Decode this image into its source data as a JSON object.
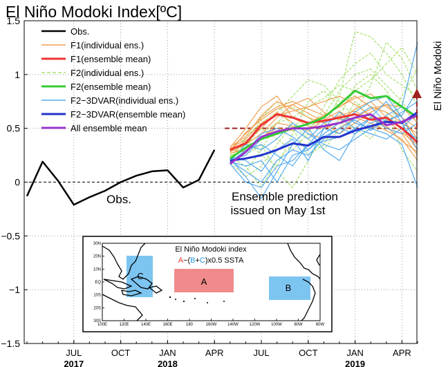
{
  "chart_data": {
    "type": "line",
    "title": "El Niño Modoki Index[ºC]",
    "ylim": [
      -1.5,
      1.5
    ],
    "yticks": [
      1.5,
      1,
      0.5,
      0,
      -0.5,
      -1,
      -1.5
    ],
    "ytick_labels": [
      "1.5",
      "1",
      "0.5",
      "0",
      "−0.5",
      "−1",
      "−1.5"
    ],
    "x_months": [
      "2017-04",
      "2017-05",
      "2017-06",
      "2017-07",
      "2017-08",
      "2017-09",
      "2017-10",
      "2017-11",
      "2017-12",
      "2018-01",
      "2018-02",
      "2018-03",
      "2018-04",
      "2018-05",
      "2018-06",
      "2018-07",
      "2018-08",
      "2018-09",
      "2018-10",
      "2018-11",
      "2018-12",
      "2019-01",
      "2019-02",
      "2019-03",
      "2019-04",
      "2019-05"
    ],
    "xticks": [
      {
        "month": "2017-07",
        "label": "JUL",
        "year": "2017"
      },
      {
        "month": "2017-10",
        "label": "OCT",
        "year": ""
      },
      {
        "month": "2018-01",
        "label": "JAN",
        "year": "2018"
      },
      {
        "month": "2018-04",
        "label": "APR",
        "year": ""
      },
      {
        "month": "2018-07",
        "label": "JUL",
        "year": ""
      },
      {
        "month": "2018-10",
        "label": "OCT",
        "year": ""
      },
      {
        "month": "2019-01",
        "label": "JAN",
        "year": "2019"
      },
      {
        "month": "2019-04",
        "label": "APR",
        "year": ""
      }
    ],
    "threshold": 0.5,
    "grid": true,
    "legend_position": "top-left",
    "legend": [
      {
        "label": "Obs.",
        "color": "#000000",
        "width": 2.5,
        "dash": ""
      },
      {
        "label": "F1(individual ens.)",
        "color": "#f0a050",
        "width": 1.5,
        "dash": ""
      },
      {
        "label": "F1(ensemble mean)",
        "color": "#ee3333",
        "width": 3,
        "dash": ""
      },
      {
        "label": "F2(individual ens.)",
        "color": "#a8e070",
        "width": 1.5,
        "dash": "5,3"
      },
      {
        "label": "F2(ensemble mean)",
        "color": "#33cc33",
        "width": 3,
        "dash": ""
      },
      {
        "label": "F2−3DVAR(individual ens.)",
        "color": "#55aaee",
        "width": 1.5,
        "dash": ""
      },
      {
        "label": "F2−3DVAR(ensemble mean)",
        "color": "#2233cc",
        "width": 3,
        "dash": ""
      },
      {
        "label": "All ensemble mean",
        "color": "#9933cc",
        "width": 3,
        "dash": ""
      }
    ],
    "series": [
      {
        "name": "Obs.",
        "kind": "obs",
        "color": "#000000",
        "x": [
          "2017-04",
          "2017-05",
          "2017-06",
          "2017-07",
          "2017-08",
          "2017-09",
          "2017-10",
          "2017-11",
          "2017-12",
          "2018-01",
          "2018-02",
          "2018-03",
          "2018-04"
        ],
        "values": [
          -0.13,
          0.19,
          0.01,
          -0.21,
          -0.14,
          -0.08,
          0.0,
          0.06,
          0.1,
          0.11,
          -0.05,
          0.02,
          0.3
        ]
      },
      {
        "name": "F1(ensemble mean)",
        "kind": "mean",
        "color": "#ee3333",
        "x": [
          "2018-05",
          "2018-06",
          "2018-07",
          "2018-08",
          "2018-09",
          "2018-10",
          "2018-11",
          "2018-12",
          "2019-01",
          "2019-02",
          "2019-03",
          "2019-04",
          "2019-05"
        ],
        "values": [
          0.3,
          0.36,
          0.53,
          0.63,
          0.6,
          0.55,
          0.57,
          0.6,
          0.63,
          0.58,
          0.6,
          0.5,
          0.37
        ]
      },
      {
        "name": "F2(ensemble mean)",
        "kind": "mean",
        "color": "#33cc33",
        "x": [
          "2018-05",
          "2018-06",
          "2018-07",
          "2018-08",
          "2018-09",
          "2018-10",
          "2018-11",
          "2018-12",
          "2019-01",
          "2019-02",
          "2019-03",
          "2019-04",
          "2019-05"
        ],
        "values": [
          0.22,
          0.32,
          0.4,
          0.45,
          0.5,
          0.54,
          0.6,
          0.72,
          0.85,
          0.78,
          0.8,
          0.7,
          0.6
        ]
      },
      {
        "name": "F2−3DVAR(ensemble mean)",
        "kind": "mean",
        "color": "#2233cc",
        "x": [
          "2018-05",
          "2018-06",
          "2018-07",
          "2018-08",
          "2018-09",
          "2018-10",
          "2018-11",
          "2018-12",
          "2019-01",
          "2019-02",
          "2019-03",
          "2019-04",
          "2019-05"
        ],
        "values": [
          0.2,
          0.22,
          0.25,
          0.3,
          0.36,
          0.34,
          0.42,
          0.42,
          0.48,
          0.52,
          0.56,
          0.55,
          0.65
        ]
      },
      {
        "name": "All ensemble mean",
        "kind": "mean",
        "color": "#9933cc",
        "x": [
          "2018-05",
          "2018-06",
          "2018-07",
          "2018-08",
          "2018-09",
          "2018-10",
          "2018-11",
          "2018-12",
          "2019-01",
          "2019-02",
          "2019-03",
          "2019-04",
          "2019-05"
        ],
        "values": [
          0.17,
          0.28,
          0.42,
          0.47,
          0.5,
          0.5,
          0.52,
          0.55,
          0.6,
          0.63,
          0.53,
          0.56,
          0.62
        ]
      }
    ],
    "ensemble_members": {
      "x": [
        "2018-05",
        "2018-06",
        "2018-07",
        "2018-08",
        "2018-09",
        "2018-10",
        "2018-11",
        "2018-12",
        "2019-01",
        "2019-02",
        "2019-03",
        "2019-04",
        "2019-05"
      ],
      "F1": {
        "color": "#f0a050",
        "members": [
          [
            0.3,
            0.45,
            0.6,
            0.7,
            0.75,
            0.68,
            0.62,
            0.7,
            0.8,
            0.7,
            0.65,
            0.55,
            0.45
          ],
          [
            0.28,
            0.35,
            0.45,
            0.6,
            0.72,
            0.78,
            0.65,
            0.58,
            0.6,
            0.68,
            0.72,
            0.6,
            0.4
          ],
          [
            0.32,
            0.5,
            0.7,
            0.8,
            0.6,
            0.52,
            0.5,
            0.55,
            0.68,
            0.75,
            0.6,
            0.5,
            0.3
          ],
          [
            0.27,
            0.3,
            0.4,
            0.55,
            0.52,
            0.48,
            0.58,
            0.66,
            0.55,
            0.5,
            0.58,
            0.46,
            0.35
          ],
          [
            0.31,
            0.4,
            0.55,
            0.62,
            0.66,
            0.7,
            0.75,
            0.8,
            0.72,
            0.62,
            0.5,
            0.45,
            0.25
          ],
          [
            0.29,
            0.38,
            0.5,
            0.65,
            0.55,
            0.45,
            0.4,
            0.5,
            0.6,
            0.55,
            0.48,
            0.4,
            0.2
          ],
          [
            0.33,
            0.42,
            0.62,
            0.75,
            0.68,
            0.6,
            0.55,
            0.45,
            0.55,
            0.65,
            0.72,
            0.7,
            0.55
          ],
          [
            0.3,
            0.28,
            0.42,
            0.5,
            0.48,
            0.55,
            0.62,
            0.7,
            0.78,
            0.82,
            0.7,
            0.6,
            0.5
          ],
          [
            0.28,
            0.46,
            0.58,
            0.68,
            0.72,
            0.64,
            0.56,
            0.62,
            0.66,
            0.58,
            0.52,
            0.38,
            0.28
          ]
        ]
      },
      "F2": {
        "color": "#a8e070",
        "members": [
          [
            0.25,
            0.35,
            0.5,
            0.4,
            0.3,
            0.45,
            0.7,
            0.95,
            1.1,
            1.2,
            1.0,
            0.9,
            0.8
          ],
          [
            0.2,
            0.1,
            0.3,
            0.55,
            0.7,
            0.6,
            0.5,
            0.8,
            1.4,
            1.35,
            1.2,
            1.0,
            0.7
          ],
          [
            0.22,
            0.4,
            0.25,
            0.15,
            0.45,
            0.75,
            0.85,
            0.7,
            0.65,
            0.9,
            1.3,
            1.15,
            0.85
          ],
          [
            0.18,
            0.05,
            0.15,
            0.35,
            0.55,
            0.4,
            0.3,
            0.5,
            0.75,
            0.6,
            0.5,
            0.8,
            1.05
          ],
          [
            0.24,
            0.3,
            0.6,
            0.75,
            0.5,
            0.25,
            0.35,
            0.6,
            0.9,
            1.0,
            0.85,
            0.6,
            0.4
          ],
          [
            0.2,
            0.25,
            0.35,
            0.1,
            -0.05,
            0.2,
            0.45,
            0.55,
            0.5,
            0.4,
            0.6,
            0.55,
            0.3
          ],
          [
            0.21,
            0.42,
            0.55,
            0.65,
            0.8,
            0.95,
            0.9,
            0.75,
            0.8,
            0.7,
            0.65,
            0.3,
            0.1
          ],
          [
            0.23,
            0.15,
            -0.05,
            0.2,
            0.35,
            0.5,
            0.62,
            0.85,
            1.0,
            1.05,
            0.9,
            0.75,
            0.55
          ],
          [
            0.19,
            0.35,
            0.45,
            0.55,
            0.6,
            0.7,
            0.78,
            0.9,
            0.85,
            0.95,
            1.1,
            1.25,
            1.0
          ]
        ]
      },
      "F2-3DVAR": {
        "color": "#55aaee",
        "members": [
          [
            0.2,
            0.1,
            0.0,
            0.2,
            0.3,
            0.25,
            0.4,
            0.5,
            0.45,
            0.55,
            0.6,
            0.5,
            0.4
          ],
          [
            0.18,
            0.3,
            0.35,
            0.25,
            0.15,
            0.35,
            0.5,
            0.45,
            0.6,
            0.7,
            0.55,
            0.65,
            0.75
          ],
          [
            0.22,
            0.05,
            -0.15,
            0.1,
            0.35,
            0.5,
            0.3,
            0.2,
            0.45,
            0.6,
            0.75,
            0.55,
            0.3
          ],
          [
            0.21,
            0.25,
            0.4,
            0.45,
            0.5,
            0.4,
            0.55,
            0.6,
            0.5,
            0.45,
            0.4,
            0.5,
            0.65
          ],
          [
            0.19,
            0.15,
            0.2,
            0.0,
            0.25,
            0.3,
            0.45,
            0.55,
            0.65,
            0.75,
            0.8,
            0.6,
            0.35
          ],
          [
            0.2,
            0.35,
            0.3,
            0.4,
            0.55,
            0.45,
            0.35,
            0.3,
            0.4,
            0.5,
            0.45,
            0.35,
            -0.05
          ],
          [
            0.23,
            0.2,
            0.1,
            0.3,
            0.4,
            0.2,
            0.5,
            0.65,
            0.55,
            0.5,
            0.62,
            0.7,
            1.3
          ],
          [
            0.17,
            0.0,
            -0.05,
            0.15,
            0.2,
            0.35,
            0.38,
            0.42,
            0.5,
            0.6,
            0.5,
            0.45,
            0.55
          ],
          [
            0.2,
            0.28,
            0.45,
            0.5,
            0.42,
            0.3,
            0.42,
            0.5,
            0.58,
            0.48,
            0.58,
            0.62,
            0.85
          ]
        ]
      }
    },
    "annotations": {
      "obs_label": "Obs.",
      "prediction_line1": "Ensemble prediction",
      "prediction_line2": "issued on May 1st",
      "side_label": "El Niño Modoki"
    },
    "inset": {
      "title": "El Niño Modoki index",
      "formula": {
        "a": "A",
        "m1": "−(",
        "b": "B",
        "plus": "+",
        "c": "C",
        "rest": ")x0.5 SSTA"
      },
      "lat_labels": [
        "30N",
        "20N",
        "10N",
        "EQ",
        "10S",
        "20S",
        "30S"
      ],
      "lon_labels": [
        "100E",
        "120E",
        "140E",
        "160E",
        "180",
        "160W",
        "140W",
        "120W",
        "100W",
        "80W",
        "60W"
      ],
      "boxes": [
        {
          "label": "A",
          "color": "#ee7777"
        },
        {
          "label": "B",
          "color": "#66bbee"
        },
        {
          "label": "C",
          "color": "#66bbee"
        }
      ]
    }
  }
}
